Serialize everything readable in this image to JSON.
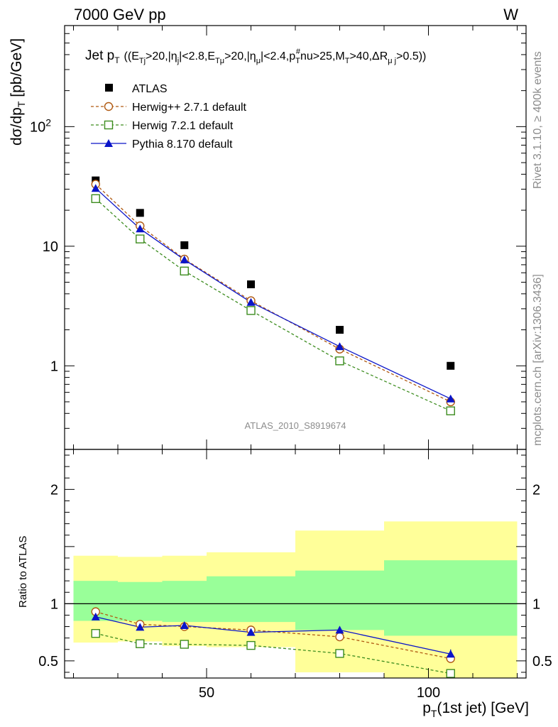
{
  "header": {
    "left": "7000 GeV pp",
    "right": "W"
  },
  "side_labels": {
    "rivet": "Rivet 3.1.10, ≥ 400k events",
    "mcplots": "mcplots.cern.ch [arXiv:1306.3436]"
  },
  "watermark": "ATLAS_2010_S8919674",
  "colors": {
    "atlas": "#000000",
    "herwigpp": "#b05a12",
    "herwig7": "#3c8c1e",
    "pythia": "#0a14c8",
    "band_inner": "#99ff99",
    "band_outer": "#ffff99"
  },
  "chart_data": [
    {
      "type": "scatter",
      "title": "Jet p_T ((E_Tj>20,|η_j|<2.8,E_Tμ>20,|η_μ|<2.4,p_T^#nu>25,M_T>40,ΔR_μj>0.5))",
      "title_parts": {
        "a": "Jet p",
        "a_sub": "T",
        "b": "((E",
        "b_sub": "Tj",
        "c": ">20,|η",
        "c_sub": "j",
        "d": "|<2.8,E",
        "d_sub": "Tμ",
        "e": ">20,|η",
        "e_sub": "μ",
        "f": "|<2.4,p",
        "f_sub": "T",
        "f_sup": "#",
        "g": "nu>25,M",
        "g_sub": "T",
        "h": ">40,ΔR",
        "h_sub": "μ j",
        "i": ">0.5))"
      },
      "ylabel": "dσ/dp_T [pb/GeV]",
      "ylabel_parts": {
        "a": "dσ/dp",
        "sub": "T",
        "b": " [pb/GeV]"
      },
      "yscale": "log",
      "xlim": [
        18,
        122
      ],
      "ylim": [
        0.2,
        700
      ],
      "y_ticks": [
        {
          "value": 1,
          "label": "1"
        },
        {
          "value": 10,
          "label": "10"
        },
        {
          "value": 100,
          "label": "10",
          "sup": "2"
        }
      ],
      "x": [
        25,
        35,
        45,
        60,
        80,
        105
      ],
      "series": [
        {
          "name": "ATLAS",
          "values": [
            35.5,
            19,
            10.2,
            4.8,
            2.0,
            1.0
          ]
        },
        {
          "name": "Herwig++ 2.7.1 default",
          "values": [
            33,
            14.8,
            7.8,
            3.5,
            1.38,
            0.5
          ]
        },
        {
          "name": "Herwig 7.2.1 default",
          "values": [
            25,
            11.5,
            6.2,
            2.9,
            1.1,
            0.42
          ]
        },
        {
          "name": "Pythia 8.170 default",
          "values": [
            30.5,
            14,
            7.7,
            3.4,
            1.45,
            0.53
          ]
        }
      ],
      "legend": "top-left"
    },
    {
      "type": "line",
      "ylabel": "Ratio to ATLAS",
      "xlabel": "p_T(1st jet) [GeV]",
      "xlabel_parts": {
        "a": "p",
        "sub": "T",
        "b": "(1st jet) [GeV]"
      },
      "xlim": [
        18,
        122
      ],
      "ylim": [
        0.35,
        2.35
      ],
      "x_ticks": [
        {
          "value": 50,
          "label": "50"
        },
        {
          "value": 100,
          "label": "100"
        }
      ],
      "y_ticks": [
        {
          "value": 0.5,
          "label": "0.5"
        },
        {
          "value": 1,
          "label": "1"
        },
        {
          "value": 2,
          "label": "2"
        }
      ],
      "bins": [
        {
          "lo": 20,
          "hi": 30,
          "inner": [
            0.85,
            1.2
          ],
          "outer": [
            0.66,
            1.42
          ]
        },
        {
          "lo": 30,
          "hi": 40,
          "inner": [
            0.85,
            1.19
          ],
          "outer": [
            0.67,
            1.41
          ]
        },
        {
          "lo": 40,
          "hi": 50,
          "inner": [
            0.84,
            1.2
          ],
          "outer": [
            0.63,
            1.42
          ]
        },
        {
          "lo": 50,
          "hi": 70,
          "inner": [
            0.84,
            1.24
          ],
          "outer": [
            0.62,
            1.45
          ]
        },
        {
          "lo": 70,
          "hi": 90,
          "inner": [
            0.77,
            1.29
          ],
          "outer": [
            0.4,
            1.64
          ]
        },
        {
          "lo": 90,
          "hi": 120,
          "inner": [
            0.72,
            1.38
          ],
          "outer": [
            0.35,
            1.72
          ]
        }
      ],
      "x": [
        25,
        35,
        45,
        60,
        80,
        105
      ],
      "series": [
        {
          "name": "Herwig++ 2.7.1 default",
          "values": [
            0.93,
            0.82,
            0.8,
            0.77,
            0.71,
            0.52
          ]
        },
        {
          "name": "Herwig 7.2.1 default",
          "values": [
            0.74,
            0.65,
            0.645,
            0.635,
            0.565,
            0.39
          ]
        },
        {
          "name": "Pythia 8.170 default",
          "values": [
            0.885,
            0.795,
            0.81,
            0.75,
            0.77,
            0.56
          ]
        }
      ],
      "pythia_errors": [
        0.02,
        0.02,
        0.02,
        0.02,
        0.03,
        0.04
      ]
    }
  ]
}
